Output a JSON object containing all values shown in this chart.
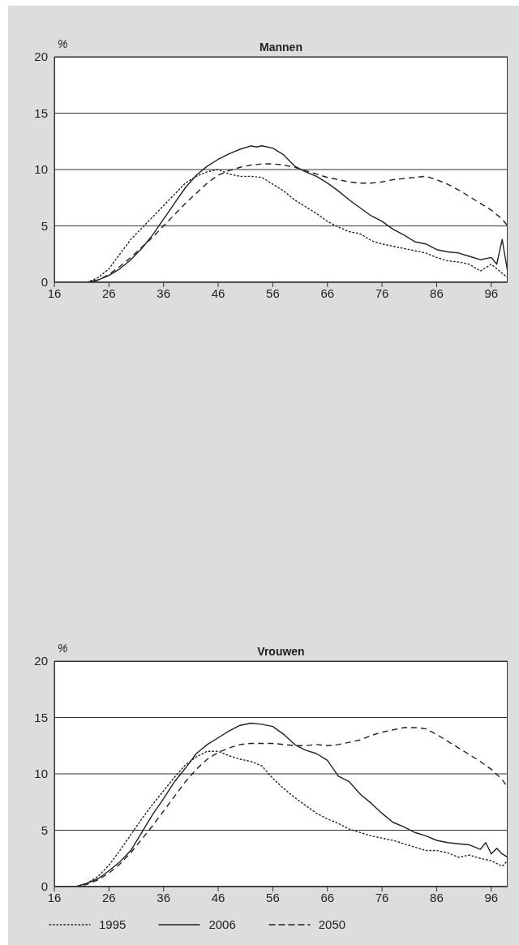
{
  "chart_data": [
    {
      "type": "line",
      "title": "Mannen",
      "ylabel": "%",
      "xlim": [
        16,
        99
      ],
      "xticks": [
        16,
        26,
        36,
        46,
        56,
        66,
        76,
        86,
        96
      ],
      "ylim": [
        0,
        20
      ],
      "yticks": [
        0,
        5,
        10,
        15,
        20
      ],
      "grid": "y",
      "legend": false,
      "marker": "none",
      "series": [
        {
          "color": "#222222",
          "line_style": "dotted",
          "x": [
            16,
            18,
            20,
            22,
            24,
            26,
            28,
            30,
            32,
            34,
            36,
            38,
            40,
            42,
            44,
            46,
            48,
            50,
            52,
            54,
            56,
            58,
            60,
            62,
            64,
            66,
            68,
            70,
            72,
            74,
            76,
            78,
            80,
            82,
            84,
            86,
            88,
            90,
            92,
            94,
            96,
            98,
            99
          ],
          "values": [
            0,
            0,
            0,
            0,
            0.4,
            1.2,
            2.5,
            3.8,
            4.8,
            5.8,
            6.8,
            7.8,
            8.8,
            9.4,
            9.8,
            10.0,
            9.6,
            9.4,
            9.4,
            9.3,
            8.7,
            8.1,
            7.3,
            6.7,
            6.1,
            5.4,
            4.9,
            4.5,
            4.3,
            3.7,
            3.4,
            3.2,
            3.0,
            2.8,
            2.6,
            2.2,
            1.9,
            1.8,
            1.6,
            1.0,
            1.6,
            0.8,
            0.4
          ]
        },
        {
          "color": "#222222",
          "line_style": "solid",
          "x": [
            16,
            18,
            20,
            22,
            24,
            26,
            28,
            30,
            32,
            34,
            36,
            38,
            40,
            42,
            44,
            46,
            48,
            50,
            52,
            53,
            54,
            56,
            58,
            60,
            62,
            64,
            66,
            68,
            70,
            72,
            74,
            76,
            78,
            80,
            82,
            84,
            86,
            88,
            90,
            92,
            94,
            96,
            97,
            98,
            99
          ],
          "values": [
            0,
            0,
            0,
            0,
            0.2,
            0.6,
            1.2,
            2.0,
            3.0,
            4.2,
            5.6,
            7.0,
            8.4,
            9.5,
            10.3,
            10.9,
            11.4,
            11.8,
            12.1,
            12.0,
            12.1,
            11.9,
            11.3,
            10.3,
            9.8,
            9.4,
            8.8,
            8.1,
            7.3,
            6.6,
            5.9,
            5.4,
            4.7,
            4.2,
            3.6,
            3.4,
            2.9,
            2.7,
            2.6,
            2.3,
            2.0,
            2.2,
            1.6,
            3.8,
            0.9
          ]
        },
        {
          "color": "#222222",
          "line_style": "dashed",
          "x": [
            16,
            18,
            20,
            22,
            24,
            26,
            28,
            30,
            32,
            34,
            36,
            38,
            40,
            42,
            44,
            46,
            48,
            50,
            52,
            54,
            56,
            58,
            60,
            62,
            64,
            66,
            68,
            70,
            72,
            74,
            76,
            78,
            80,
            82,
            84,
            86,
            88,
            90,
            92,
            94,
            96,
            98,
            99
          ],
          "values": [
            0,
            0,
            0,
            0,
            0.2,
            0.7,
            1.4,
            2.2,
            3.1,
            4.0,
            5.0,
            6.0,
            7.0,
            7.9,
            8.8,
            9.5,
            9.9,
            10.2,
            10.4,
            10.5,
            10.5,
            10.4,
            10.2,
            9.9,
            9.6,
            9.3,
            9.1,
            8.9,
            8.8,
            8.8,
            8.9,
            9.1,
            9.2,
            9.3,
            9.4,
            9.1,
            8.7,
            8.2,
            7.6,
            7.0,
            6.4,
            5.6,
            5.0
          ]
        }
      ]
    },
    {
      "type": "line",
      "title": "Vrouwen",
      "ylabel": "%",
      "xlim": [
        16,
        99
      ],
      "xticks": [
        16,
        26,
        36,
        46,
        56,
        66,
        76,
        86,
        96
      ],
      "ylim": [
        0,
        20
      ],
      "yticks": [
        0,
        5,
        10,
        15,
        20
      ],
      "grid": "y",
      "legend": "bottom",
      "marker": "none",
      "series": [
        {
          "name": "1995",
          "color": "#222222",
          "line_style": "dotted",
          "x": [
            16,
            18,
            20,
            22,
            24,
            26,
            28,
            30,
            32,
            34,
            36,
            38,
            40,
            42,
            44,
            46,
            48,
            50,
            52,
            54,
            56,
            58,
            60,
            62,
            64,
            66,
            68,
            70,
            72,
            74,
            76,
            78,
            80,
            82,
            84,
            86,
            88,
            90,
            92,
            94,
            96,
            98,
            99
          ],
          "values": [
            0,
            0,
            0,
            0.3,
            0.9,
            1.9,
            3.2,
            4.6,
            6.0,
            7.3,
            8.5,
            9.7,
            10.8,
            11.5,
            12.0,
            12.0,
            11.6,
            11.3,
            11.1,
            10.7,
            9.6,
            8.7,
            7.9,
            7.2,
            6.5,
            6.0,
            5.6,
            5.1,
            4.8,
            4.5,
            4.3,
            4.1,
            3.8,
            3.5,
            3.2,
            3.2,
            3.0,
            2.6,
            2.8,
            2.5,
            2.3,
            1.8,
            2.3
          ]
        },
        {
          "name": "2006",
          "color": "#222222",
          "line_style": "solid",
          "x": [
            16,
            18,
            20,
            22,
            24,
            26,
            28,
            30,
            32,
            34,
            36,
            38,
            40,
            42,
            44,
            46,
            48,
            50,
            52,
            54,
            56,
            58,
            60,
            62,
            64,
            66,
            68,
            70,
            72,
            74,
            76,
            78,
            80,
            82,
            84,
            86,
            88,
            90,
            92,
            94,
            95,
            96,
            97,
            98,
            99
          ],
          "values": [
            0,
            0,
            0,
            0.3,
            0.7,
            1.4,
            2.2,
            3.2,
            4.8,
            6.4,
            7.8,
            9.3,
            10.5,
            11.8,
            12.6,
            13.2,
            13.8,
            14.3,
            14.5,
            14.4,
            14.2,
            13.5,
            12.6,
            12.1,
            11.8,
            11.2,
            9.8,
            9.3,
            8.2,
            7.4,
            6.5,
            5.7,
            5.3,
            4.8,
            4.5,
            4.1,
            3.9,
            3.8,
            3.7,
            3.3,
            3.9,
            2.9,
            3.4,
            2.9,
            2.6
          ]
        },
        {
          "name": "2050",
          "color": "#222222",
          "line_style": "dashed",
          "x": [
            16,
            18,
            20,
            22,
            24,
            26,
            28,
            30,
            32,
            34,
            36,
            38,
            40,
            42,
            44,
            46,
            48,
            50,
            52,
            54,
            56,
            58,
            60,
            62,
            64,
            66,
            68,
            70,
            72,
            74,
            76,
            78,
            80,
            82,
            84,
            86,
            88,
            90,
            92,
            94,
            96,
            98,
            99
          ],
          "values": [
            0,
            0,
            0,
            0.2,
            0.6,
            1.2,
            2.0,
            3.0,
            4.2,
            5.4,
            6.7,
            8.0,
            9.3,
            10.4,
            11.3,
            11.9,
            12.3,
            12.6,
            12.7,
            12.7,
            12.7,
            12.6,
            12.5,
            12.5,
            12.6,
            12.5,
            12.6,
            12.8,
            13.0,
            13.4,
            13.7,
            13.9,
            14.1,
            14.1,
            14.0,
            13.5,
            12.9,
            12.3,
            11.7,
            11.1,
            10.4,
            9.5,
            8.8
          ]
        }
      ]
    }
  ]
}
